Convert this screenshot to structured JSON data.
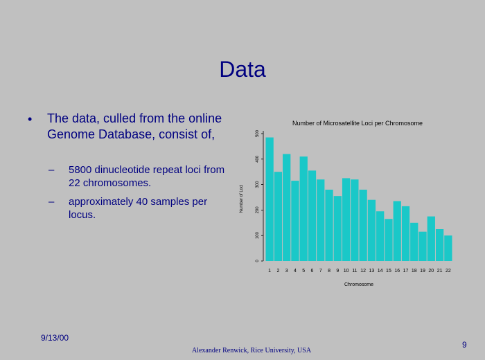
{
  "slide": {
    "title": "Data",
    "bullet": "The data, culled from the online Genome Database, consist of,",
    "bullet_marker": "•",
    "sub_marker": "–",
    "subbullets": [
      "5800 dinucleotide repeat loci from 22 chromosomes.",
      "approximately 40 samples per locus."
    ],
    "date": "9/13/00",
    "author": "Alexander Renwick, Rice University, USA",
    "page_number": "9"
  },
  "colors": {
    "text": "#000080",
    "background": "#c0c0c0",
    "bar": "#1ac8c8"
  },
  "chart_data": {
    "type": "bar",
    "title": "Number of Microsatellite Loci per Chromosome",
    "xlabel": "Chromosome",
    "ylabel": "Number of Loci",
    "categories": [
      "1",
      "2",
      "3",
      "4",
      "5",
      "6",
      "7",
      "8",
      "9",
      "10",
      "11",
      "12",
      "13",
      "14",
      "15",
      "16",
      "17",
      "18",
      "19",
      "20",
      "21",
      "22"
    ],
    "values": [
      485,
      350,
      420,
      315,
      410,
      355,
      320,
      280,
      255,
      325,
      320,
      280,
      240,
      195,
      165,
      235,
      215,
      150,
      115,
      175,
      125,
      100
    ],
    "yticks": [
      "0",
      "100",
      "200",
      "300",
      "400",
      "500"
    ],
    "ylim": [
      0,
      500
    ],
    "grid": false
  }
}
